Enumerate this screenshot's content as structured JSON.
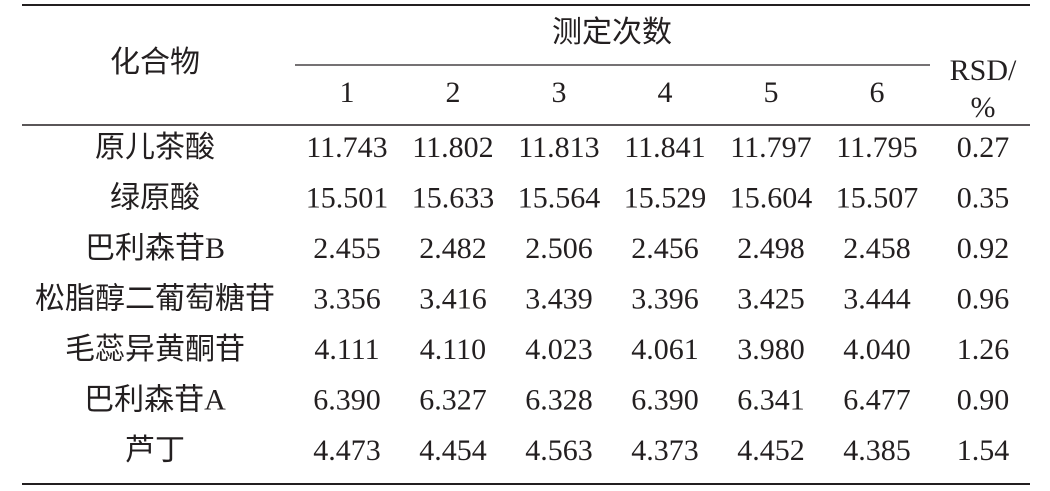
{
  "table": {
    "header": {
      "compound": "化合物",
      "group": "测定次数",
      "runs": [
        "1",
        "2",
        "3",
        "4",
        "5",
        "6"
      ],
      "rsd_lines": [
        "RSD/",
        "%"
      ]
    },
    "rows": [
      [
        "原儿茶酸",
        "11.743",
        "11.802",
        "11.813",
        "11.841",
        "11.797",
        "11.795",
        "0.27"
      ],
      [
        "绿原酸",
        "15.501",
        "15.633",
        "15.564",
        "15.529",
        "15.604",
        "15.507",
        "0.35"
      ],
      [
        "巴利森苷B",
        "2.455",
        "2.482",
        "2.506",
        "2.456",
        "2.498",
        "2.458",
        "0.92"
      ],
      [
        "松脂醇二葡萄糖苷",
        "3.356",
        "3.416",
        "3.439",
        "3.396",
        "3.425",
        "3.444",
        "0.96"
      ],
      [
        "毛蕊异黄酮苷",
        "4.111",
        "4.110",
        "4.023",
        "4.061",
        "3.980",
        "4.040",
        "1.26"
      ],
      [
        "巴利森苷A",
        "6.390",
        "6.327",
        "6.328",
        "6.390",
        "6.341",
        "6.477",
        "0.90"
      ],
      [
        "芦丁",
        "4.473",
        "4.454",
        "4.563",
        "4.373",
        "4.452",
        "4.385",
        "1.54"
      ]
    ]
  }
}
